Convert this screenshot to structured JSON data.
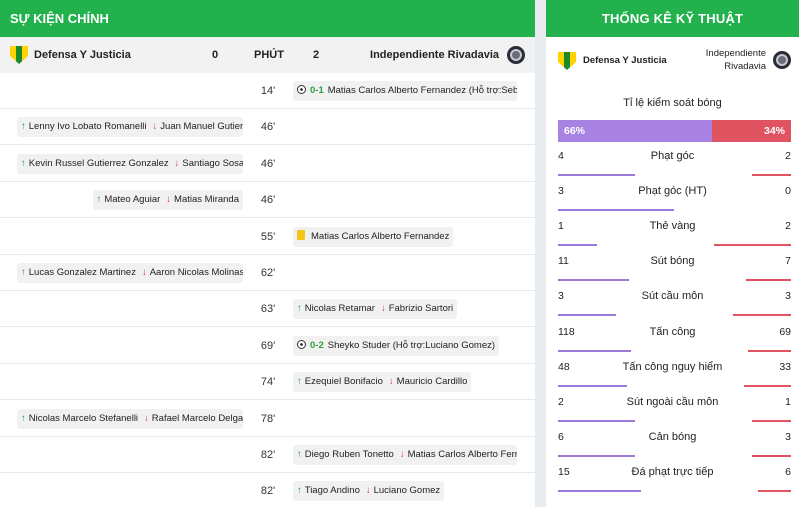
{
  "left_panel": {
    "title": "SỰ KIỆN CHÍNH",
    "home_team": "Defensa Y Justicia",
    "home_score": "0",
    "minute_header": "PHÚT",
    "away_score": "2",
    "away_team": "Independiente Rivadavia",
    "events": [
      {
        "minute": "14'",
        "side": "away",
        "kind": "goal",
        "score": "0-1",
        "text": "Matias Carlos Alberto Fernandez (Hỗ trợ:Sebastian Villa)"
      },
      {
        "minute": "46'",
        "side": "home",
        "kind": "sub",
        "in": "Lenny Ivo Lobato Romanelli",
        "out": "Juan Manuel Gutierrez"
      },
      {
        "minute": "46'",
        "side": "home",
        "kind": "sub",
        "in": "Kevin Russel Gutierrez Gonzalez",
        "out": "Santiago Sosa"
      },
      {
        "minute": "46'",
        "side": "home",
        "kind": "sub",
        "in": "Mateo Aguiar",
        "out": "Matias Miranda"
      },
      {
        "minute": "55'",
        "side": "away",
        "kind": "yellow",
        "text": "Matias Carlos Alberto Fernandez"
      },
      {
        "minute": "62'",
        "side": "home",
        "kind": "sub",
        "in": "Lucas Gonzalez Martinez",
        "out": "Aaron Nicolas Molinas"
      },
      {
        "minute": "63'",
        "side": "away",
        "kind": "sub",
        "in": "Nicolas Retamar",
        "out": "Fabrizio Sartori"
      },
      {
        "minute": "69'",
        "side": "away",
        "kind": "goal",
        "score": "0-2",
        "text": "Sheyko Studer (Hỗ trợ:Luciano Gomez)"
      },
      {
        "minute": "74'",
        "side": "away",
        "kind": "sub",
        "in": "Ezequiel Bonifacio",
        "out": "Mauricio Cardillo"
      },
      {
        "minute": "78'",
        "side": "home",
        "kind": "sub",
        "in": "Nicolas Marcelo Stefanelli",
        "out": "Rafael Marcelo Delgado"
      },
      {
        "minute": "82'",
        "side": "away",
        "kind": "sub",
        "in": "Diego Ruben Tonetto",
        "out": "Matias Carlos Alberto Fernandez"
      },
      {
        "minute": "82'",
        "side": "away",
        "kind": "sub",
        "in": "Tiago Andino",
        "out": "Luciano Gomez"
      }
    ]
  },
  "right_panel": {
    "title": "THỐNG KÊ KỸ THUẬT",
    "home_team": "Defensa Y Justicia",
    "away_team_line1": "Independiente",
    "away_team_line2": "Rivadavia",
    "possession_label": "Tỉ lệ kiểm soát bóng",
    "possession_home": "66%",
    "possession_away": "34%",
    "possession_home_fraction": 0.66,
    "stats": [
      {
        "label": "Phạt góc",
        "home": "4",
        "away": "2"
      },
      {
        "label": "Phạt góc (HT)",
        "home": "3",
        "away": "0"
      },
      {
        "label": "Thẻ vàng",
        "home": "1",
        "away": "2"
      },
      {
        "label": "Sút bóng",
        "home": "11",
        "away": "7"
      },
      {
        "label": "Sút cầu môn",
        "home": "3",
        "away": "3"
      },
      {
        "label": "Tấn công",
        "home": "118",
        "away": "69"
      },
      {
        "label": "Tấn công nguy hiểm",
        "home": "48",
        "away": "33"
      },
      {
        "label": "Sút ngoài cầu môn",
        "home": "2",
        "away": "1"
      },
      {
        "label": "Cản bóng",
        "home": "6",
        "away": "3"
      },
      {
        "label": "Đá phạt trực tiếp",
        "home": "15",
        "away": "6"
      }
    ]
  },
  "colors": {
    "header_green": "#22b14c",
    "home_bar": "#9a79d9",
    "away_bar": "#e05361",
    "sub_in": "#2e9e41",
    "sub_out": "#d9333f",
    "yellow_card": "#f5c518"
  },
  "icons": {
    "sub_in": "arrow-up-icon",
    "sub_out": "arrow-down-icon",
    "goal": "football-icon",
    "yellow": "yellow-card-icon"
  }
}
